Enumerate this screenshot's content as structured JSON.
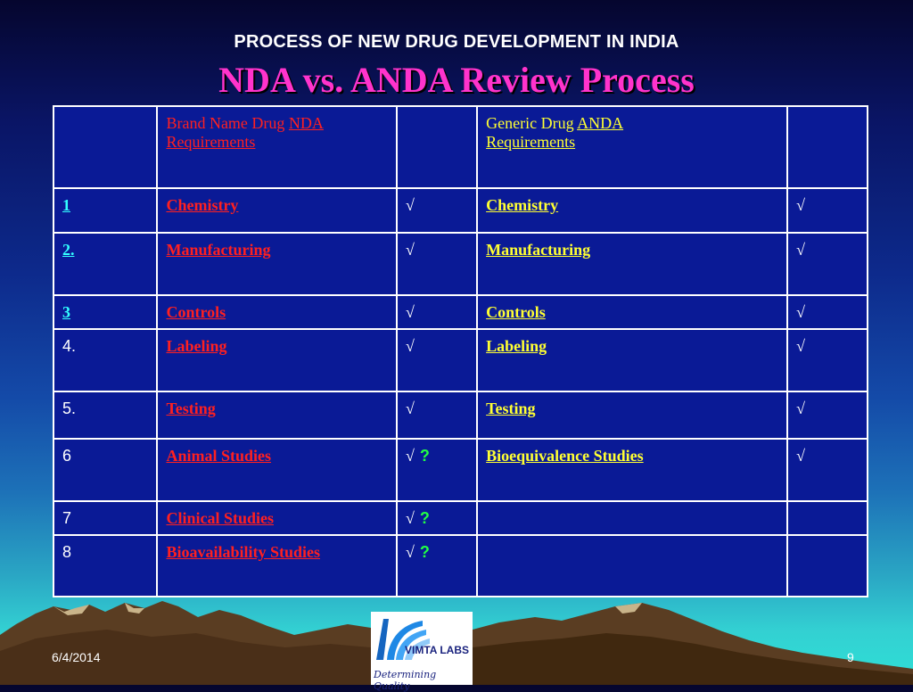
{
  "subtitle": "PROCESS OF NEW DRUG DEVELOPMENT IN INDIA",
  "title": "NDA vs. ANDA Review Process",
  "table": {
    "header": {
      "brand_prefix": "Brand Name Drug ",
      "brand_link": "NDA",
      "brand_link2": "Requirements",
      "generic_prefix": "Generic Drug ",
      "generic_link": "ANDA",
      "generic_link2": "Requirements"
    },
    "rows": [
      {
        "num": "1",
        "nda": "Chemistry",
        "nda_check": "√",
        "nda_q": "",
        "anda": "Chemistry",
        "anda_check": "√"
      },
      {
        "num": "2.",
        "nda": "Manufacturing",
        "nda_check": "√",
        "nda_q": "",
        "anda": "Manufacturing",
        "anda_check": "√"
      },
      {
        "num": "3",
        "nda": "Controls",
        "nda_check": "√",
        "nda_q": "",
        "anda": "Controls",
        "anda_check": "√"
      },
      {
        "num": "4.",
        "nda": "Labeling",
        "nda_check": "√",
        "nda_q": "",
        "anda": "Labeling",
        "anda_check": "√"
      },
      {
        "num": "5.",
        "nda": "Testing",
        "nda_check": "√",
        "nda_q": "",
        "anda": "Testing",
        "anda_check": "√"
      },
      {
        "num": "6",
        "nda": "Animal Studies",
        "nda_check": "√",
        "nda_q": "?",
        "anda": "Bioequivalence Studies",
        "anda_check": "√"
      },
      {
        "num": "7",
        "nda": "Clinical Studies",
        "nda_check": "√",
        "nda_q": "?",
        "anda": "",
        "anda_check": ""
      },
      {
        "num": "8",
        "nda": "Bioavailability Studies",
        "nda_check": "√",
        "nda_q": "?",
        "anda": "",
        "anda_check": ""
      }
    ]
  },
  "footer": {
    "date": "6/4/2014",
    "page": "9"
  },
  "logo": {
    "name": "VIMTA LABS",
    "tagline": "Determining Quality"
  },
  "colors": {
    "title": "#ff33cc",
    "nda_text": "#ff2020",
    "anda_text": "#ffff33",
    "link_num": "#33ffff",
    "question": "#22ff44"
  }
}
